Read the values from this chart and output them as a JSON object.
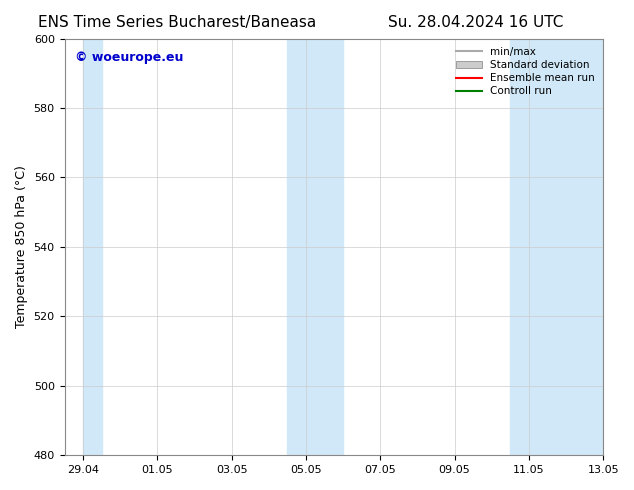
{
  "title_left": "ENS Time Series Bucharest/Baneasa",
  "title_right": "Su. 28.04.2024 16 UTC",
  "ylabel": "Temperature 850 hPa (°C)",
  "ylim": [
    480,
    600
  ],
  "yticks": [
    480,
    500,
    520,
    540,
    560,
    580,
    600
  ],
  "xlim_start": "2024-04-29",
  "xlim_end": "2024-05-13",
  "xtick_labels": [
    "29.04",
    "01.05",
    "03.05",
    "05.05",
    "07.05",
    "09.05",
    "11.05",
    "13.05"
  ],
  "xtick_positions": [
    0,
    2,
    4,
    6,
    8,
    10,
    12,
    14
  ],
  "shaded_regions": [
    {
      "x_start": 0,
      "x_end": 0.5,
      "color": "#d0e8f8"
    },
    {
      "x_start": 5.5,
      "x_end": 7.0,
      "color": "#d0e8f8"
    },
    {
      "x_start": 11.5,
      "x_end": 14.0,
      "color": "#d0e8f8"
    }
  ],
  "watermark_text": "© woeurope.eu",
  "watermark_color": "#0000cc",
  "legend_items": [
    {
      "label": "min/max",
      "color": "#aaaaaa",
      "style": "line"
    },
    {
      "label": "Standard deviation",
      "color": "#cccccc",
      "style": "rect"
    },
    {
      "label": "Ensemble mean run",
      "color": "red",
      "style": "line"
    },
    {
      "label": "Controll run",
      "color": "green",
      "style": "line"
    }
  ],
  "background_color": "#ffffff",
  "plot_bg_color": "#ffffff",
  "grid_color": "#cccccc",
  "title_fontsize": 11,
  "axis_fontsize": 9,
  "tick_fontsize": 8
}
